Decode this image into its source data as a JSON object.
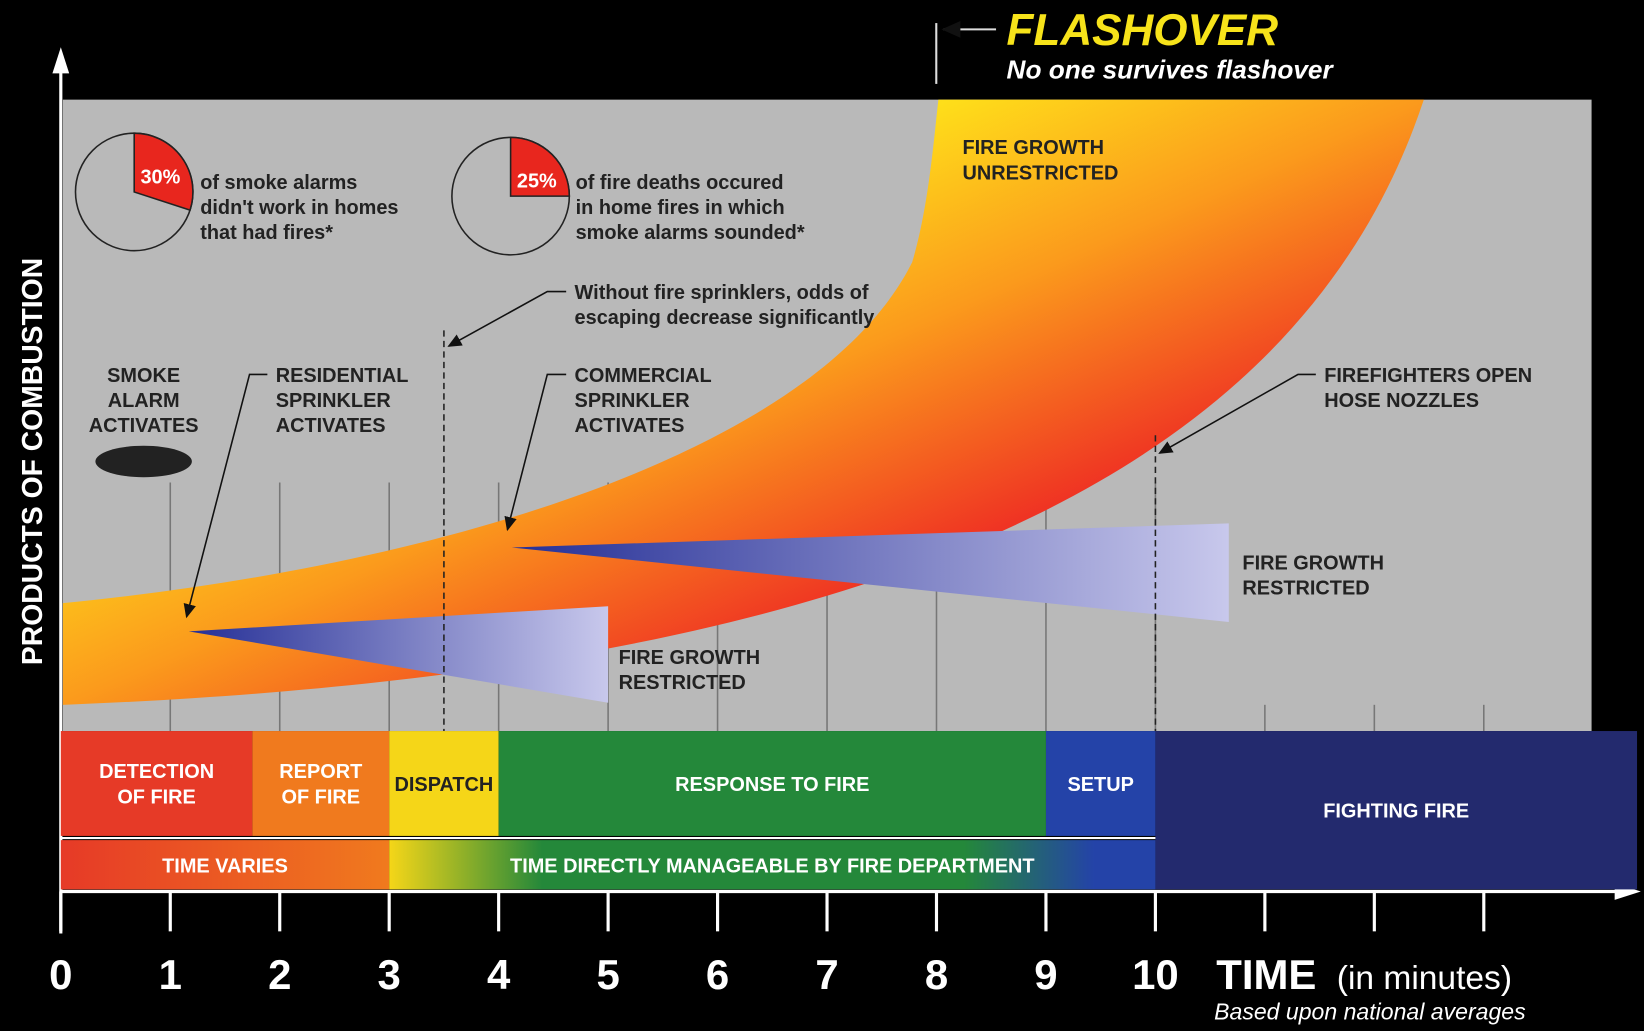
{
  "header": {
    "title": "FLASHOVER",
    "subtitle": "No one survives flashover"
  },
  "y_axis_label": "PRODUCTS OF COMBUSTION",
  "x_axis": {
    "label": "TIME",
    "unit": "(in minutes)",
    "note": "Based upon national averages",
    "ticks": [
      0,
      1,
      2,
      3,
      4,
      5,
      6,
      7,
      8,
      9,
      10
    ],
    "minor_ticks": [
      11,
      12,
      13
    ],
    "lim": [
      0,
      14.4
    ]
  },
  "pies": [
    {
      "value": 30,
      "label": "30%",
      "lines": [
        "of smoke alarms",
        "didn't work in homes",
        "that had fires*"
      ]
    },
    {
      "value": 25,
      "label": "25%",
      "lines": [
        "of fire deaths occured",
        "in home fires in which",
        "smoke alarms sounded*"
      ]
    }
  ],
  "annotations": [
    {
      "lines": [
        "SMOKE",
        "ALARM",
        "ACTIVATES"
      ]
    },
    {
      "lines": [
        "RESIDENTIAL",
        "SPRINKLER",
        "ACTIVATES"
      ]
    },
    {
      "lines": [
        "COMMERCIAL",
        "SPRINKLER",
        "ACTIVATES"
      ]
    },
    {
      "lines": [
        "Without fire sprinklers, odds of",
        "escaping decrease significantly"
      ]
    },
    {
      "lines": [
        "FIRE GROWTH",
        "UNRESTRICTED"
      ]
    },
    {
      "lines": [
        "FIREFIGHTERS OPEN",
        "HOSE NOZZLES"
      ]
    },
    {
      "lines": [
        "FIRE GROWTH",
        "RESTRICTED"
      ]
    },
    {
      "lines": [
        "FIRE GROWTH",
        "RESTRICTED"
      ]
    }
  ],
  "phases": [
    {
      "label": [
        "DETECTION",
        "OF FIRE"
      ],
      "start": 0,
      "end": 1.75,
      "color": "#e63a27",
      "text_color": "#ffffff"
    },
    {
      "label": [
        "REPORT",
        "OF FIRE"
      ],
      "start": 1.75,
      "end": 3,
      "color": "#f07a1e",
      "text_color": "#ffffff"
    },
    {
      "label": [
        "DISPATCH"
      ],
      "start": 3,
      "end": 4,
      "color": "#f5d618",
      "text_color": "#222222"
    },
    {
      "label": [
        "RESPONSE TO FIRE"
      ],
      "start": 4,
      "end": 9,
      "color": "#24883a",
      "text_color": "#ffffff"
    },
    {
      "label": [
        "SETUP"
      ],
      "start": 9,
      "end": 10,
      "color": "#2443a8",
      "text_color": "#ffffff"
    },
    {
      "label": [
        "FIGHTING FIRE"
      ],
      "start": 10,
      "end": 14.4,
      "color": "#232a6e",
      "text_color": "#ffffff"
    }
  ],
  "time_spans": [
    {
      "label": "TIME VARIES",
      "start": 0,
      "end": 3
    },
    {
      "label": "TIME DIRECTLY MANAGEABLE BY FIRE DEPARTMENT",
      "start": 3,
      "end": 10
    }
  ],
  "markers": [
    3.5,
    10
  ]
}
